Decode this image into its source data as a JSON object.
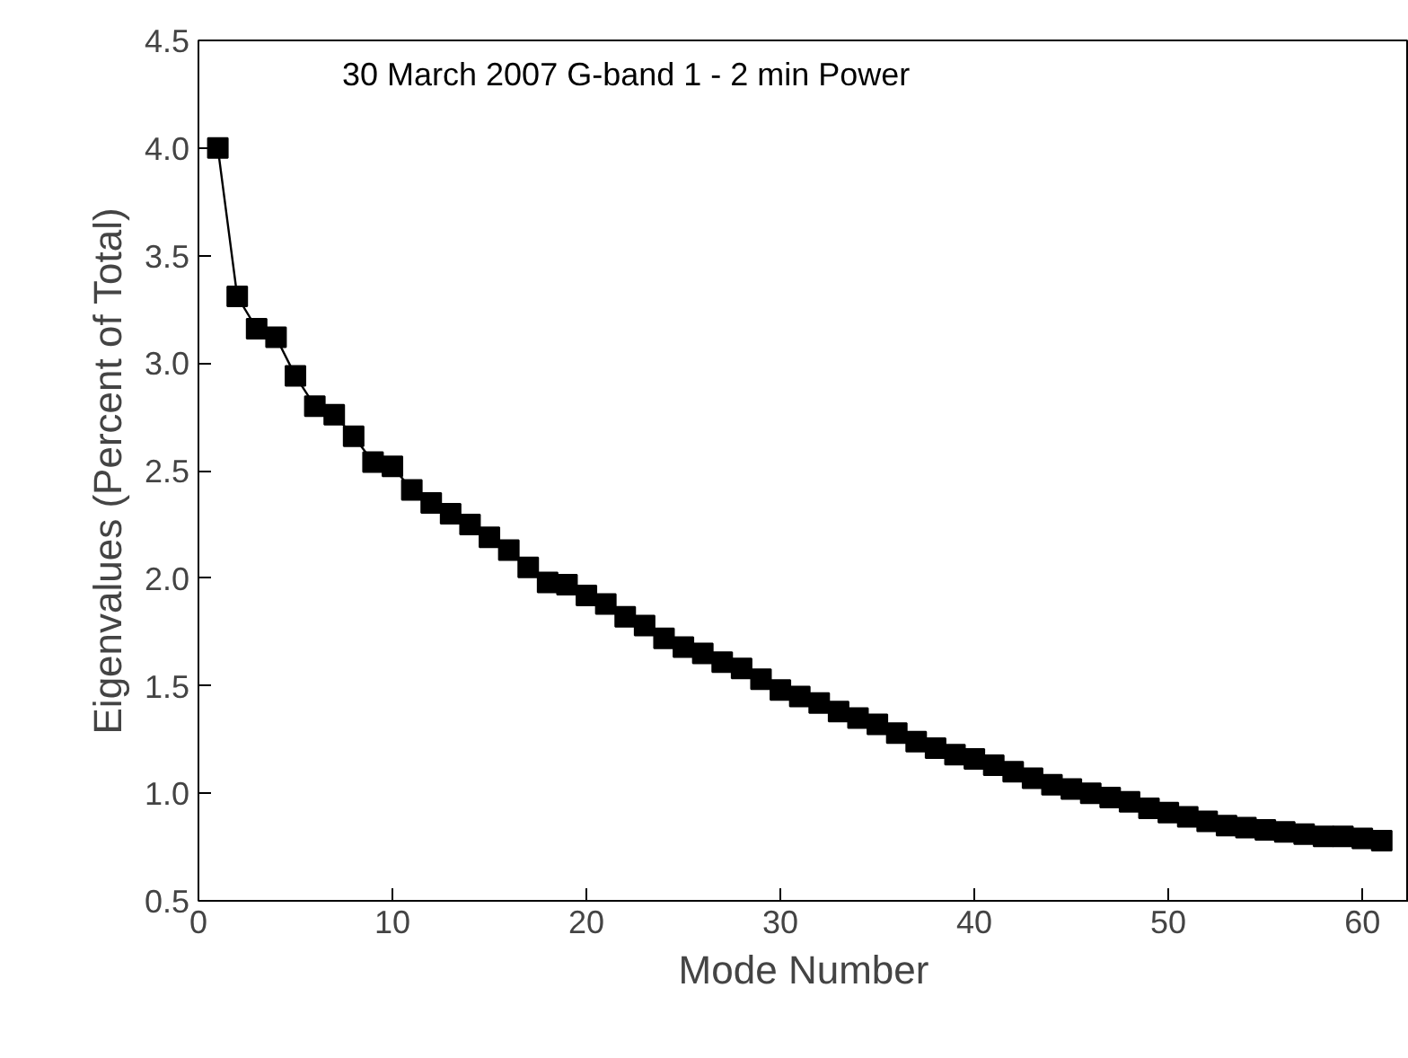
{
  "chart_data": {
    "type": "line",
    "title": "30 March 2007    G-band    1 - 2 min Power",
    "xlabel": "Mode Number",
    "ylabel": "Eigenvalues (Percent of Total)",
    "x": [
      1,
      2,
      3,
      4,
      5,
      6,
      7,
      8,
      9,
      10,
      11,
      12,
      13,
      14,
      15,
      16,
      17,
      18,
      19,
      20,
      21,
      22,
      23,
      24,
      25,
      26,
      27,
      28,
      29,
      30,
      31,
      32,
      33,
      34,
      35,
      36,
      37,
      38,
      39,
      40,
      41,
      42,
      43,
      44,
      45,
      46,
      47,
      48,
      49,
      50,
      51,
      52,
      53,
      54,
      55,
      56,
      57,
      58,
      59,
      60,
      61
    ],
    "series": [
      {
        "color": "#000000",
        "values": [
          4.0,
          3.31,
          3.16,
          3.12,
          2.94,
          2.8,
          2.76,
          2.66,
          2.54,
          2.52,
          2.41,
          2.35,
          2.3,
          2.25,
          2.19,
          2.13,
          2.05,
          1.98,
          1.97,
          1.92,
          1.88,
          1.82,
          1.78,
          1.72,
          1.68,
          1.65,
          1.61,
          1.58,
          1.53,
          1.48,
          1.45,
          1.42,
          1.38,
          1.35,
          1.32,
          1.28,
          1.24,
          1.21,
          1.18,
          1.16,
          1.13,
          1.1,
          1.07,
          1.04,
          1.02,
          1.0,
          0.98,
          0.96,
          0.93,
          0.91,
          0.89,
          0.87,
          0.85,
          0.84,
          0.83,
          0.82,
          0.81,
          0.8,
          0.8,
          0.79,
          0.78
        ]
      }
    ],
    "xlim": [
      0,
      62.4
    ],
    "ylim": [
      0.5,
      4.5
    ],
    "xticks": [
      0,
      10,
      20,
      30,
      40,
      50,
      60
    ],
    "yticks": [
      {
        "value": 0.5,
        "label": "0.5"
      },
      {
        "value": 1.0,
        "label": "1.0"
      },
      {
        "value": 1.5,
        "label": "1.5"
      },
      {
        "value": 2.0,
        "label": "2.0"
      },
      {
        "value": 2.5,
        "label": "2.5"
      },
      {
        "value": 3.0,
        "label": "3.0"
      },
      {
        "value": 3.5,
        "label": "3.5"
      },
      {
        "value": 4.0,
        "label": "4.0"
      },
      {
        "value": 4.5,
        "label": "4.5"
      }
    ],
    "grid": false,
    "marker": "square",
    "line_style": "solid"
  }
}
